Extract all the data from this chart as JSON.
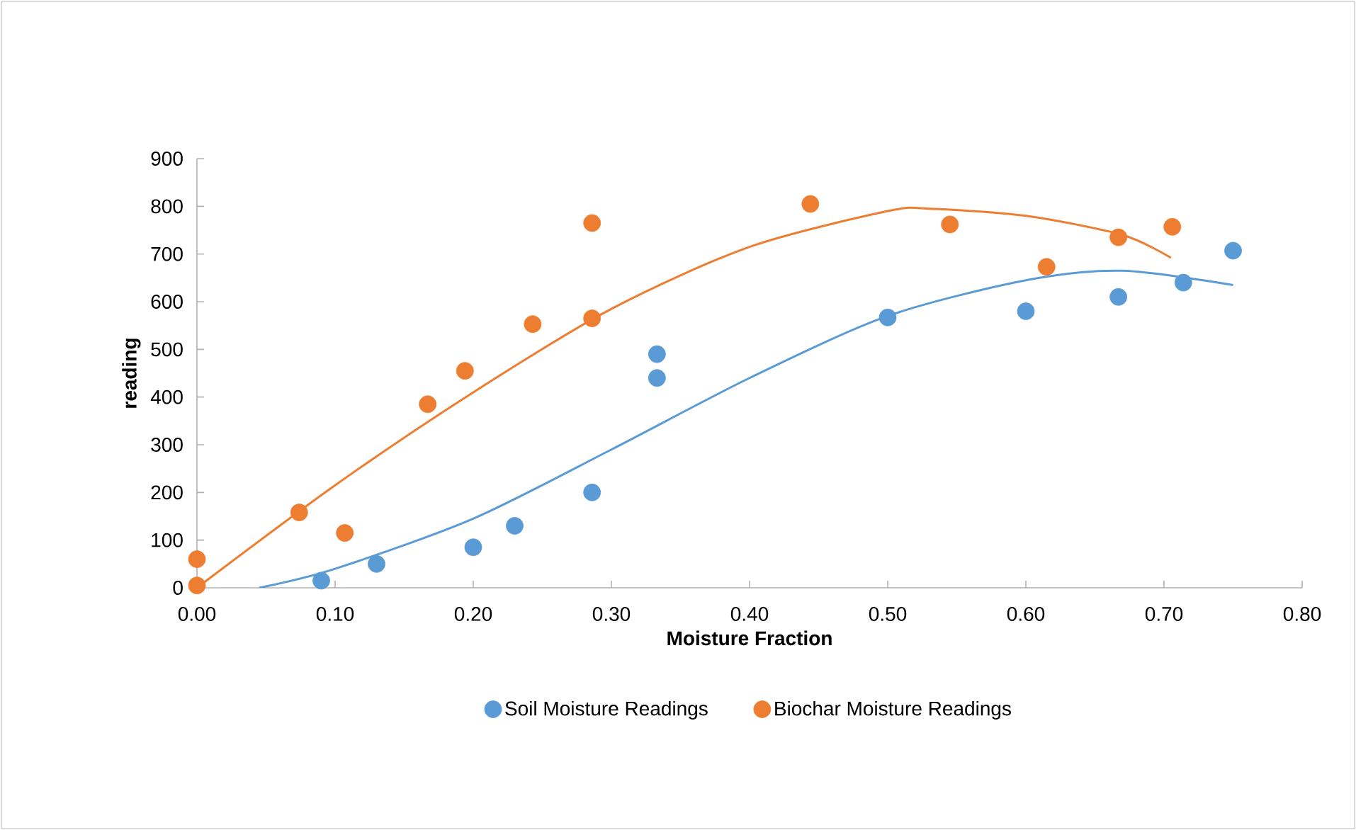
{
  "chart_data": {
    "type": "scatter",
    "xlabel": "Moisture Fraction",
    "ylabel": "reading",
    "xlim": [
      0,
      0.8
    ],
    "ylim": [
      0,
      900
    ],
    "xticks": [
      {
        "value": 0,
        "label": "0.00"
      },
      {
        "value": 0.1,
        "label": "0.10"
      },
      {
        "value": 0.2,
        "label": "0.20"
      },
      {
        "value": 0.3,
        "label": "0.30"
      },
      {
        "value": 0.4,
        "label": "0.40"
      },
      {
        "value": 0.5,
        "label": "0.50"
      },
      {
        "value": 0.6,
        "label": "0.60"
      },
      {
        "value": 0.7,
        "label": "0.70"
      },
      {
        "value": 0.8,
        "label": "0.80"
      }
    ],
    "yticks": [
      0,
      100,
      200,
      300,
      400,
      500,
      600,
      700,
      800,
      900
    ],
    "grid": false,
    "legend": "bottom",
    "marker": "circle",
    "series": [
      {
        "name": "Soil Moisture Readings",
        "color": "#5b9bd5",
        "x": [
          0.09,
          0.13,
          0.2,
          0.23,
          0.286,
          0.333,
          0.333,
          0.5,
          0.6,
          0.667,
          0.714,
          0.75
        ],
        "values": [
          15,
          50,
          85,
          130,
          200,
          440,
          490,
          567,
          580,
          610,
          640,
          707
        ]
      },
      {
        "name": "Biochar Moisture Readings",
        "color": "#ed7d31",
        "x": [
          0,
          0,
          0.074,
          0.107,
          0.167,
          0.194,
          0.243,
          0.286,
          0.286,
          0.444,
          0.545,
          0.615,
          0.667,
          0.706
        ],
        "values": [
          60,
          5,
          158,
          115,
          385,
          455,
          553,
          565,
          765,
          805,
          762,
          673,
          735,
          757
        ]
      },
      {
        "type": "line",
        "marker": "none",
        "color": "#5b9bd5",
        "x": [
          0.045,
          0.1,
          0.2,
          0.3,
          0.4,
          0.5,
          0.6,
          0.67,
          0.75
        ],
        "values": [
          0,
          40,
          145,
          290,
          440,
          570,
          645,
          665,
          635
        ]
      },
      {
        "type": "line",
        "marker": "none",
        "color": "#ed7d31",
        "x": [
          0,
          0.1,
          0.2,
          0.3,
          0.4,
          0.5,
          0.53,
          0.6,
          0.67,
          0.705
        ],
        "values": [
          0,
          215,
          410,
          585,
          715,
          790,
          795,
          780,
          740,
          692
        ]
      }
    ]
  }
}
